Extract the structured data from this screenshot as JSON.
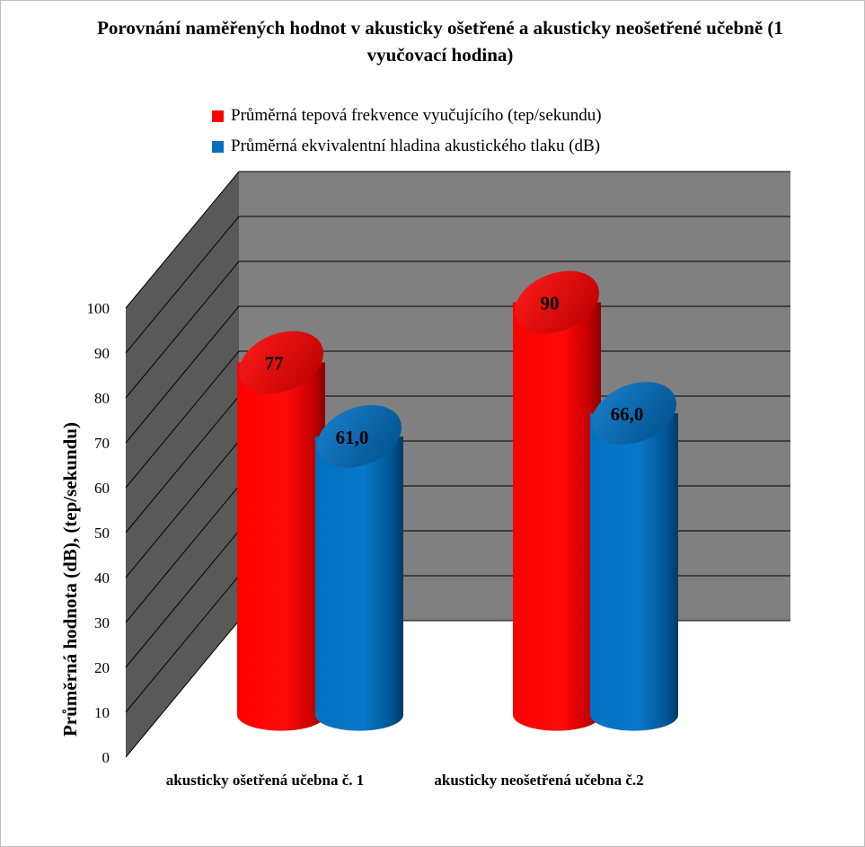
{
  "chart_data": {
    "type": "bar",
    "title": "Porovnání naměřených hodnot v akusticky ošetřené a akusticky neošetřené učebně (1 vyučovací hodina)",
    "ylabel": "Průměrná hodnota (dB), (tep/sekundu)",
    "ylim": [
      0,
      100
    ],
    "yticks": [
      "0",
      "10",
      "20",
      "30",
      "40",
      "50",
      "60",
      "70",
      "80",
      "90",
      "100"
    ],
    "categories": [
      "akusticky ošetřená učebna č. 1",
      "akusticky neošetřená učebna č.2"
    ],
    "series": [
      {
        "name": "Průměrná tepová frekvence vyučujícího (tep/sekundu)",
        "values": [
          77,
          90
        ],
        "labels": [
          "77",
          "90"
        ],
        "color": "#ff0000"
      },
      {
        "name": "Průměrná ekvivalentní hladina akustického tlaku (dB)",
        "values": [
          61.0,
          66.0
        ],
        "labels": [
          "61,0",
          "66,0"
        ],
        "color": "#0070c0"
      }
    ],
    "legend": "top",
    "grid": true,
    "style": "3d-cylinder"
  }
}
